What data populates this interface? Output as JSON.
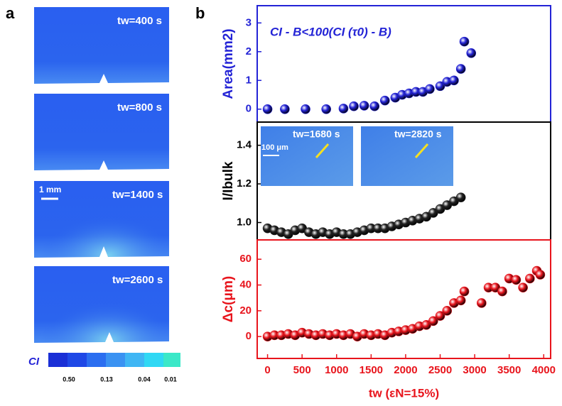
{
  "panel_a": {
    "label": "a",
    "images": [
      {
        "label": "tw=400 s"
      },
      {
        "label": "tw=800 s"
      },
      {
        "label": "tw=1400 s"
      },
      {
        "label": "tw=2600 s"
      }
    ],
    "scale_bar": "1 mm",
    "colorbar": {
      "label": "CI",
      "ticks": [
        "0.50",
        "0.13",
        "0.04",
        "0.01"
      ]
    }
  },
  "panel_b": {
    "label": "b",
    "insets": [
      {
        "label": "tw=1680 s"
      },
      {
        "label": "tw=2820 s"
      }
    ],
    "scale_bar": "100 μm"
  },
  "chart_data": [
    {
      "type": "scatter",
      "ylabel": "Area(mm2)",
      "annotation": "CI - B<100(CI (τ0) - B)",
      "color": "#2323d6",
      "axis_color": "#2323d6",
      "x": [
        0,
        250,
        550,
        850,
        1100,
        1250,
        1400,
        1550,
        1700,
        1850,
        1950,
        2050,
        2150,
        2250,
        2350,
        2500,
        2600,
        2700,
        2800,
        2850,
        2950
      ],
      "values": [
        0,
        0,
        0,
        0,
        0.02,
        0.1,
        0.12,
        0.1,
        0.3,
        0.4,
        0.5,
        0.55,
        0.6,
        0.6,
        0.7,
        0.8,
        0.95,
        1.0,
        1.4,
        2.35,
        1.95
      ],
      "xlim": [
        -150,
        4100
      ],
      "ylim": [
        -0.45,
        3.6
      ],
      "yticks": [
        0,
        1,
        2,
        3
      ]
    },
    {
      "type": "scatter",
      "ylabel": "I/Ibulk",
      "color": "#222222",
      "axis_color": "#000000",
      "x": [
        0,
        100,
        200,
        300,
        400,
        500,
        600,
        700,
        800,
        900,
        1000,
        1100,
        1200,
        1300,
        1400,
        1500,
        1600,
        1700,
        1800,
        1900,
        2000,
        2100,
        2200,
        2300,
        2400,
        2500,
        2600,
        2700,
        2800
      ],
      "values": [
        0.97,
        0.96,
        0.95,
        0.94,
        0.96,
        0.97,
        0.95,
        0.94,
        0.95,
        0.94,
        0.95,
        0.94,
        0.94,
        0.95,
        0.96,
        0.97,
        0.97,
        0.97,
        0.98,
        0.99,
        1.0,
        1.01,
        1.02,
        1.03,
        1.05,
        1.07,
        1.09,
        1.11,
        1.13
      ],
      "xlim": [
        -150,
        4100
      ],
      "ylim": [
        0.91,
        1.52
      ],
      "yticks": [
        {
          "value": 1,
          "label": "1.0"
        },
        {
          "value": 1.2,
          "label": "1.2"
        },
        {
          "value": 1.4,
          "label": "1.4"
        }
      ]
    },
    {
      "type": "scatter",
      "ylabel": "Δc(μm)",
      "xlabel": "tw (εN=15%)",
      "color": "#e8141c",
      "axis_color": "#e8141c",
      "x": [
        0,
        100,
        200,
        300,
        400,
        500,
        600,
        700,
        800,
        900,
        1000,
        1100,
        1200,
        1300,
        1400,
        1500,
        1600,
        1700,
        1800,
        1900,
        2000,
        2100,
        2200,
        2300,
        2400,
        2500,
        2600,
        2700,
        2800,
        2850,
        3100,
        3200,
        3300,
        3400,
        3500,
        3600,
        3700,
        3800,
        3900,
        3950
      ],
      "values": [
        0,
        1,
        1,
        2,
        1,
        3,
        2,
        1,
        2,
        1,
        2,
        1,
        2,
        0,
        2,
        1,
        2,
        1,
        3,
        4,
        5,
        6,
        8,
        9,
        12,
        16,
        20,
        26,
        28,
        35,
        26,
        38,
        38,
        35,
        45,
        44,
        38,
        45,
        51,
        48
      ],
      "xlim": [
        -150,
        4100
      ],
      "ylim": [
        -17,
        75
      ],
      "yticks": [
        0,
        20,
        40,
        60
      ],
      "xticks": [
        0,
        500,
        1000,
        1500,
        2000,
        2500,
        3000,
        3500,
        4000
      ]
    }
  ]
}
